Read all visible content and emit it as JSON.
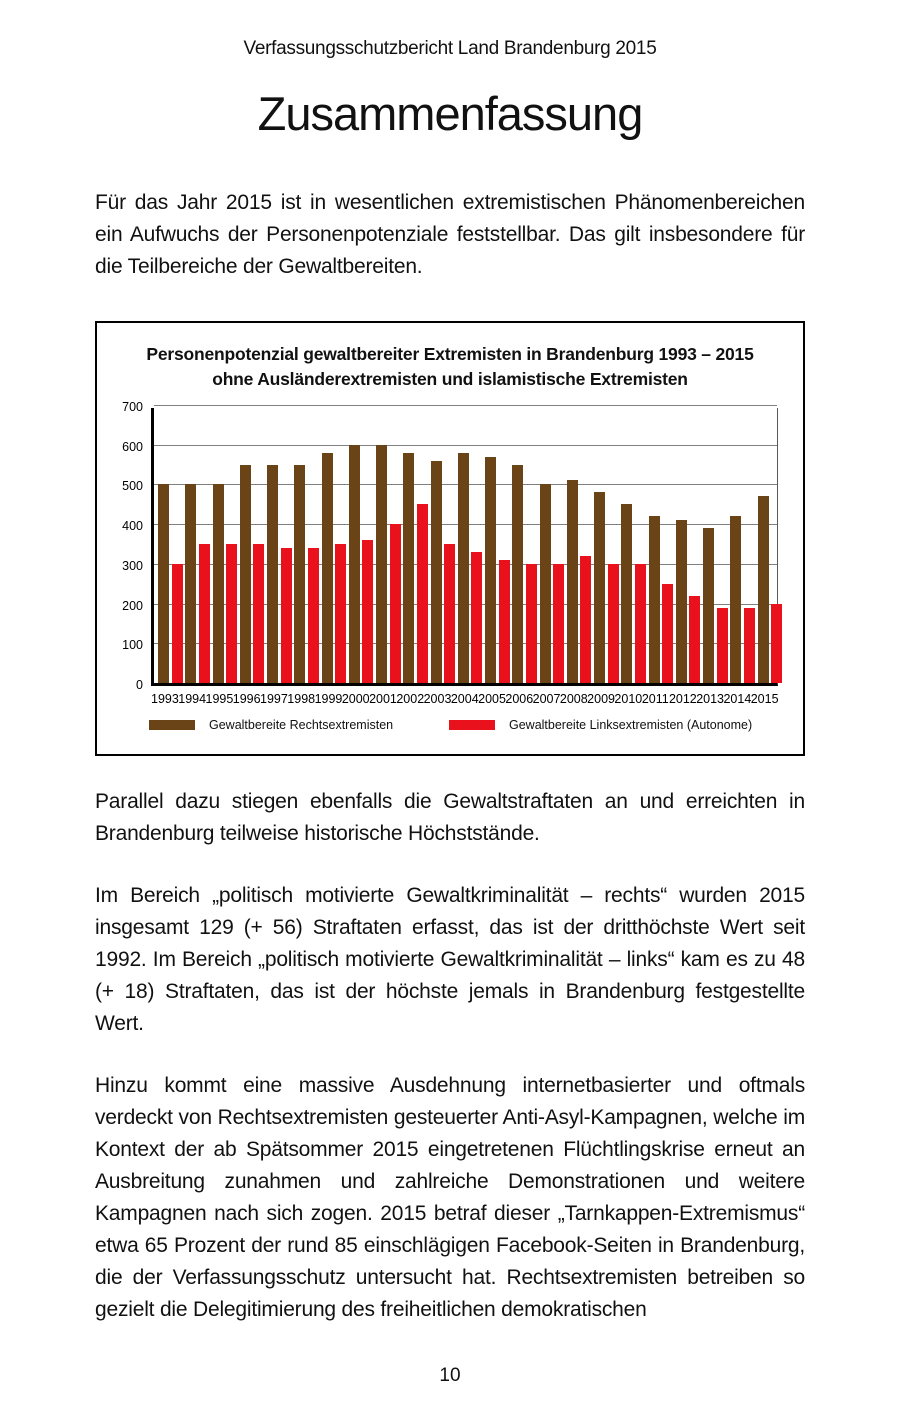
{
  "page": {
    "header": "Verfassungsschutzbericht Land Brandenburg 2015",
    "title": "Zusammenfassung",
    "paragraphs": [
      "Für das Jahr 2015 ist in wesentlichen extremistischen Phänomenbereichen ein Aufwuchs der Personenpotenziale feststellbar. Das gilt insbesondere für die Teilbereiche der Gewaltbereiten.",
      "Parallel dazu stiegen ebenfalls die Gewaltstraftaten an und erreichten in Brandenburg teilweise historische Höchststände.",
      "Im Bereich „politisch motivierte Gewaltkriminalität – rechts“ wurden 2015 insgesamt 129 (+ 56) Straftaten erfasst, das ist der dritthöchste Wert seit 1992. Im Bereich „politisch motivierte Gewaltkriminalität – links“ kam es zu 48 (+ 18) Straftaten, das ist der höchste jemals in Brandenburg festgestellte Wert.",
      "Hinzu kommt eine massive Ausdehnung internetbasierter und oftmals verdeckt von Rechtsextremisten gesteuerter Anti-Asyl-Kampagnen, welche im Kontext der ab Spätsommer 2015 eingetretenen Flüchtlingskrise erneut an Ausbreitung zunahmen und zahlreiche Demonstrationen und weitere Kampagnen nach sich zogen. 2015 betraf dieser „Tarnkappen-Extremismus“ etwa 65 Prozent der rund 85 einschlägigen Facebook-Seiten in Brandenburg, die der Verfassungsschutz untersucht hat. Rechtsextremisten betreiben so gezielt die Delegitimierung des freiheitlichen demokratischen"
    ],
    "page_number": "10"
  },
  "chart_data": {
    "type": "bar",
    "title": "Personenpotenzial gewaltbereiter Extremisten in Brandenburg 1993 – 2015",
    "subtitle": "ohne Ausländerextremisten und islamistische Extremisten",
    "categories": [
      "1993",
      "1994",
      "1995",
      "1996",
      "1997",
      "1998",
      "1999",
      "2000",
      "2001",
      "2002",
      "2003",
      "2004",
      "2005",
      "2006",
      "2007",
      "2008",
      "2009",
      "2010",
      "2011",
      "2012",
      "2013",
      "2014",
      "2015"
    ],
    "series": [
      {
        "name": "Gewaltbereite Rechtsextremisten",
        "color": "#6a4317",
        "values": [
          500,
          500,
          500,
          550,
          550,
          550,
          580,
          600,
          600,
          580,
          560,
          580,
          570,
          550,
          500,
          510,
          480,
          450,
          420,
          410,
          390,
          420,
          470
        ]
      },
      {
        "name": "Gewaltbereite Linksextremisten (Autonome)",
        "color": "#e8111c",
        "values": [
          300,
          350,
          350,
          350,
          340,
          340,
          350,
          360,
          400,
          450,
          350,
          330,
          310,
          300,
          300,
          320,
          300,
          300,
          250,
          220,
          190,
          190,
          200
        ]
      }
    ],
    "xlabel": "",
    "ylabel": "",
    "ylim": [
      0,
      700
    ],
    "ytick_interval": 100,
    "grid": true,
    "legend_position": "bottom"
  }
}
